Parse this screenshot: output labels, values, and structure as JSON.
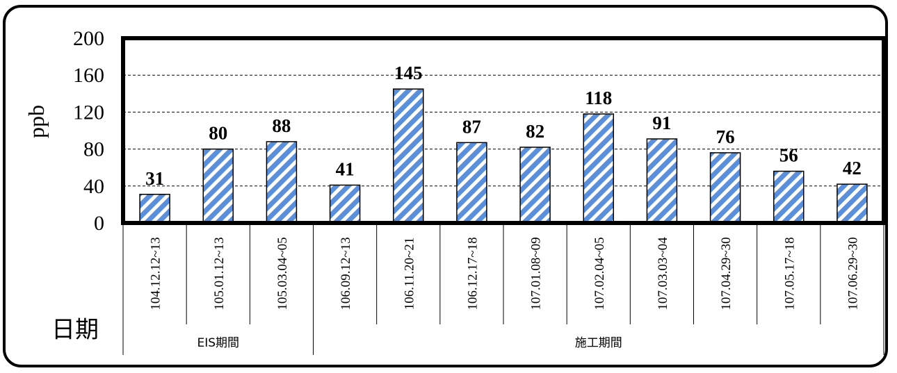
{
  "chart_data": {
    "type": "bar",
    "ylabel": "ppb",
    "xlabel": "日期",
    "ylim": [
      0,
      200
    ],
    "yticks": [
      0,
      40,
      80,
      120,
      160,
      200
    ],
    "grid": true,
    "categories": [
      "104.12.12~13",
      "105.01.12~13",
      "105.03.04~05",
      "106.09.12~13",
      "106.11.20~21",
      "106.12.17~18",
      "107.01.08~09",
      "107.02.04~05",
      "107.03.03~04",
      "107.04.29~30",
      "107.05.17~18",
      "107.06.29~30"
    ],
    "values": [
      31,
      80,
      88,
      41,
      145,
      87,
      82,
      118,
      91,
      76,
      56,
      42
    ],
    "groups": [
      {
        "label": "EIS期間",
        "count": 3
      },
      {
        "label": "施工期間",
        "count": 9
      }
    ],
    "bar_color": "#5b8fd9",
    "bar_pattern": "diagonal-stripes"
  }
}
